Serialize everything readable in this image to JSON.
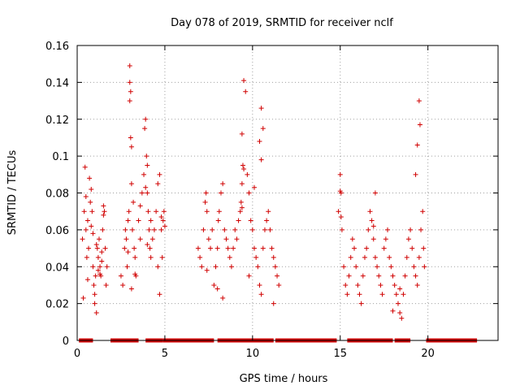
{
  "chart_data": {
    "type": "scatter",
    "title": "Day 078 of 2019, SRMTID for receiver nclf",
    "xlabel": "GPS time / hours",
    "ylabel": "SRMTID / TECUs",
    "xlim": [
      0,
      24
    ],
    "ylim": [
      0,
      0.16
    ],
    "xticks": [
      0,
      5,
      10,
      15,
      20
    ],
    "xtick_labels": [
      "0",
      "5",
      "10",
      "15",
      "20"
    ],
    "yticks": [
      0,
      0.02,
      0.04,
      0.06,
      0.08,
      0.1,
      0.12,
      0.14,
      0.16
    ],
    "ytick_labels": [
      "0",
      "0.02",
      "0.04",
      "0.06",
      "0.08",
      "0.1",
      "0.12",
      "0.14",
      "0.16"
    ],
    "grid": true,
    "marker": "+",
    "color": "#d00000",
    "series": [
      {
        "name": "SRMTID",
        "x": [
          0.3,
          0.4,
          0.45,
          0.5,
          0.55,
          0.6,
          0.65,
          0.7,
          0.75,
          0.8,
          0.85,
          0.9,
          0.95,
          1.0,
          1.0,
          1.05,
          1.1,
          1.15,
          1.2,
          1.25,
          1.3,
          1.35,
          1.4,
          1.45,
          1.5,
          1.55,
          1.6,
          1.65,
          1.7,
          0.35,
          0.6,
          0.8,
          1.1,
          1.2,
          1.4,
          1.5,
          0.5,
          0.9,
          1.3,
          2.5,
          2.6,
          2.7,
          2.75,
          2.8,
          2.85,
          2.9,
          2.95,
          3.0,
          3.0,
          3.05,
          3.1,
          3.1,
          3.15,
          3.2,
          3.25,
          3.3,
          3.35,
          3.5,
          3.6,
          3.7,
          3.8,
          3.85,
          3.9,
          3.95,
          4.0,
          4.0,
          4.05,
          4.1,
          4.15,
          4.2,
          4.3,
          4.4,
          4.5,
          4.6,
          4.7,
          4.8,
          4.85,
          4.9,
          4.95,
          5.0,
          3.0,
          3.05,
          3.1,
          3.9,
          4.0,
          4.6,
          4.7,
          2.9,
          3.3,
          3.6,
          4.2,
          4.8,
          6.9,
          7.0,
          7.1,
          7.2,
          7.3,
          7.35,
          7.4,
          7.5,
          7.6,
          7.7,
          7.8,
          7.9,
          8.0,
          8.05,
          8.1,
          8.2,
          8.3,
          8.4,
          8.5,
          8.6,
          8.7,
          8.8,
          8.9,
          9.0,
          9.1,
          9.2,
          9.3,
          9.35,
          9.4,
          9.45,
          9.5,
          9.6,
          9.7,
          9.8,
          9.9,
          10.0,
          10.1,
          10.2,
          10.3,
          10.4,
          10.5,
          10.6,
          10.7,
          10.8,
          10.9,
          11.0,
          11.1,
          11.2,
          11.3,
          11.4,
          11.5,
          9.4,
          9.5,
          9.4,
          10.5,
          10.6,
          10.5,
          10.4,
          10.1,
          9.8,
          8.3,
          8.0,
          7.4,
          11.2,
          14.9,
          15.0,
          15.05,
          15.1,
          15.2,
          15.3,
          15.4,
          15.5,
          15.6,
          15.7,
          15.8,
          15.9,
          16.0,
          16.1,
          16.2,
          16.3,
          16.4,
          16.5,
          16.6,
          16.7,
          16.8,
          16.9,
          17.0,
          17.1,
          17.2,
          17.3,
          17.4,
          17.5,
          17.6,
          17.7,
          17.8,
          17.9,
          18.0,
          18.1,
          18.2,
          18.3,
          18.4,
          18.5,
          18.6,
          18.7,
          18.8,
          18.9,
          19.0,
          19.1,
          19.2,
          19.3,
          19.4,
          19.5,
          19.6,
          19.7,
          19.75,
          19.8,
          15.0,
          15.05,
          16.9,
          17.0,
          19.5,
          19.55,
          19.4,
          19.3,
          18.4,
          18.0
        ],
        "y": [
          0.055,
          0.07,
          0.094,
          0.06,
          0.045,
          0.065,
          0.05,
          0.088,
          0.075,
          0.082,
          0.07,
          0.04,
          0.03,
          0.025,
          0.02,
          0.035,
          0.015,
          0.05,
          0.045,
          0.055,
          0.04,
          0.035,
          0.048,
          0.06,
          0.073,
          0.07,
          0.05,
          0.03,
          0.04,
          0.023,
          0.033,
          0.062,
          0.052,
          0.038,
          0.043,
          0.068,
          0.078,
          0.058,
          0.036,
          0.035,
          0.03,
          0.05,
          0.06,
          0.055,
          0.04,
          0.065,
          0.07,
          0.149,
          0.13,
          0.11,
          0.105,
          0.085,
          0.06,
          0.075,
          0.05,
          0.045,
          0.035,
          0.065,
          0.055,
          0.08,
          0.09,
          0.115,
          0.12,
          0.1,
          0.095,
          0.08,
          0.07,
          0.06,
          0.05,
          0.065,
          0.055,
          0.06,
          0.07,
          0.085,
          0.09,
          0.06,
          0.045,
          0.065,
          0.07,
          0.062,
          0.14,
          0.135,
          0.028,
          0.083,
          0.052,
          0.04,
          0.025,
          0.048,
          0.036,
          0.073,
          0.045,
          0.067,
          0.05,
          0.045,
          0.04,
          0.06,
          0.075,
          0.08,
          0.07,
          0.055,
          0.05,
          0.06,
          0.03,
          0.04,
          0.05,
          0.065,
          0.07,
          0.08,
          0.085,
          0.06,
          0.055,
          0.05,
          0.045,
          0.04,
          0.05,
          0.06,
          0.055,
          0.065,
          0.07,
          0.075,
          0.085,
          0.095,
          0.141,
          0.135,
          0.09,
          0.08,
          0.065,
          0.06,
          0.05,
          0.045,
          0.04,
          0.03,
          0.025,
          0.05,
          0.06,
          0.065,
          0.07,
          0.06,
          0.05,
          0.045,
          0.04,
          0.035,
          0.03,
          0.112,
          0.093,
          0.072,
          0.126,
          0.115,
          0.098,
          0.108,
          0.083,
          0.035,
          0.023,
          0.028,
          0.038,
          0.02,
          0.07,
          0.09,
          0.08,
          0.06,
          0.04,
          0.03,
          0.025,
          0.035,
          0.045,
          0.055,
          0.05,
          0.04,
          0.03,
          0.025,
          0.02,
          0.035,
          0.045,
          0.05,
          0.06,
          0.07,
          0.065,
          0.055,
          0.045,
          0.04,
          0.035,
          0.03,
          0.025,
          0.05,
          0.055,
          0.06,
          0.045,
          0.04,
          0.035,
          0.03,
          0.025,
          0.02,
          0.015,
          0.012,
          0.025,
          0.035,
          0.045,
          0.055,
          0.06,
          0.05,
          0.04,
          0.035,
          0.03,
          0.045,
          0.06,
          0.07,
          0.05,
          0.04,
          0.081,
          0.067,
          0.062,
          0.08,
          0.13,
          0.117,
          0.106,
          0.09,
          0.028,
          0.016
        ]
      }
    ],
    "zero_band": [
      [
        0.1,
        0.9
      ],
      [
        1.9,
        3.5
      ],
      [
        3.9,
        4.9
      ],
      [
        4.9,
        7.8
      ],
      [
        8.0,
        11.2
      ],
      [
        11.3,
        14.8
      ],
      [
        15.4,
        18.0
      ],
      [
        18.1,
        19.0
      ],
      [
        19.9,
        22.8
      ]
    ]
  }
}
